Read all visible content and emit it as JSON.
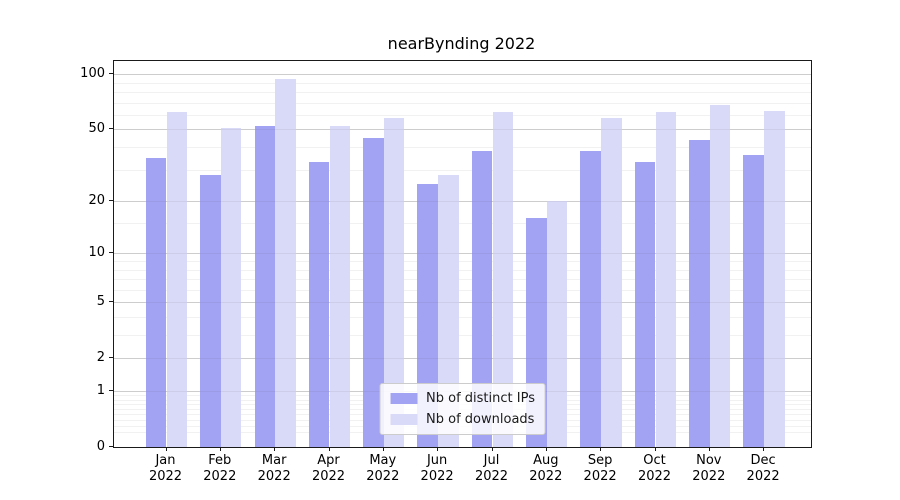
{
  "title": "nearBynding 2022",
  "chart_data": {
    "type": "bar",
    "title": "nearBynding 2022",
    "categories": [
      "Jan",
      "Feb",
      "Mar",
      "Apr",
      "May",
      "Jun",
      "Jul",
      "Aug",
      "Sep",
      "Oct",
      "Nov",
      "Dec"
    ],
    "category_year": "2022",
    "series": [
      {
        "name": "Nb of distinct IPs",
        "color": "#a3a3f3",
        "values": [
          35,
          28,
          52,
          33,
          45,
          25,
          38,
          16,
          38,
          33,
          44,
          36
        ]
      },
      {
        "name": "Nb of downloads",
        "color": "#d9d9f8",
        "values": [
          62,
          51,
          94,
          52,
          58,
          28,
          62,
          20,
          58,
          62,
          68,
          63
        ]
      }
    ],
    "yscale": "log1p",
    "ylim": [
      0,
      118
    ],
    "yticks": [
      100,
      50,
      20,
      10,
      5,
      2,
      1,
      0
    ],
    "minor_yticks": [
      0.2,
      0.3,
      0.4,
      0.5,
      0.6,
      0.7,
      0.8,
      0.9,
      3,
      4,
      6,
      7,
      8,
      9,
      15,
      30,
      40,
      60,
      70,
      80,
      90
    ],
    "grid": true,
    "legend_position": "lower center"
  }
}
